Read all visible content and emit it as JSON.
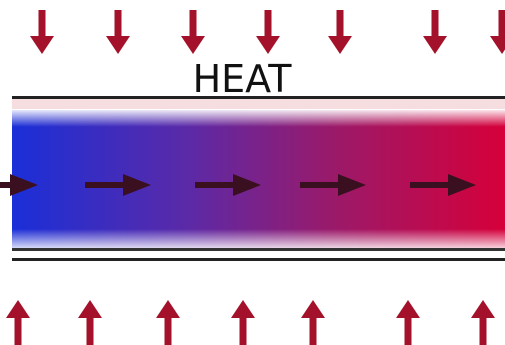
{
  "label": "HEAT"
}
